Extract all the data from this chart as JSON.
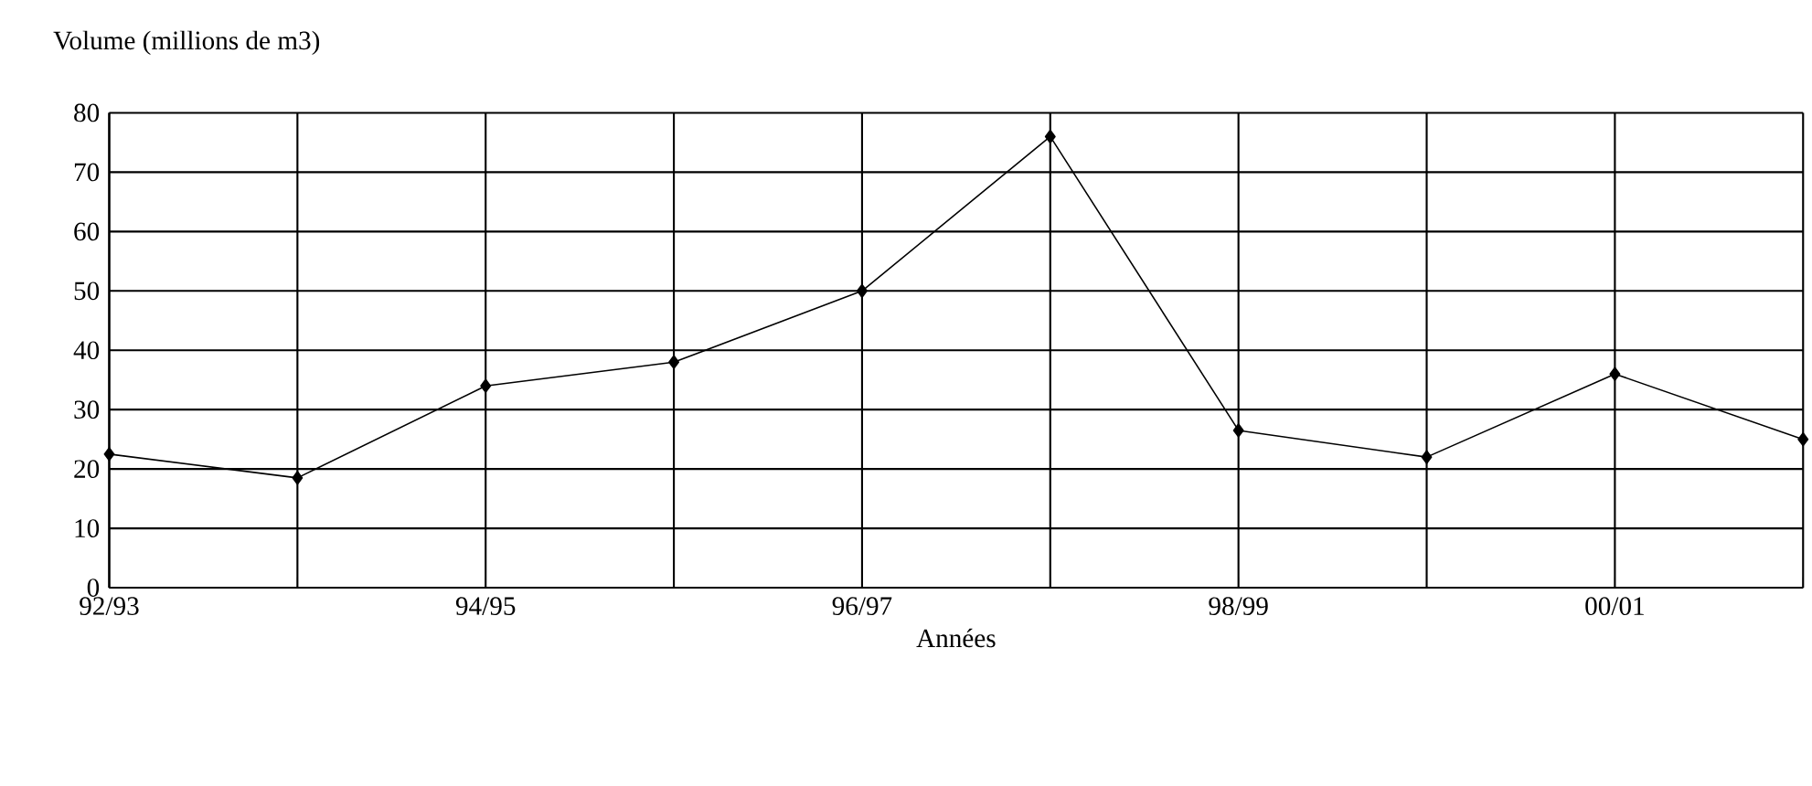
{
  "chart_data": {
    "type": "line",
    "ylabel": "Volume (millions de m3)",
    "xlabel": "Années",
    "categories": [
      "92/93",
      null,
      "94/95",
      null,
      "96/97",
      null,
      "98/99",
      null,
      "00/01",
      null
    ],
    "series": [
      {
        "color": "#000000",
        "values": [
          22.5,
          18.5,
          34,
          38,
          50,
          76,
          26.5,
          22,
          36,
          25
        ]
      }
    ],
    "ylim": [
      0,
      80
    ],
    "yticks": [
      0,
      10,
      20,
      30,
      40,
      50,
      60,
      70,
      80
    ],
    "grid": true,
    "marker": "diamond",
    "line_style": "solid"
  }
}
